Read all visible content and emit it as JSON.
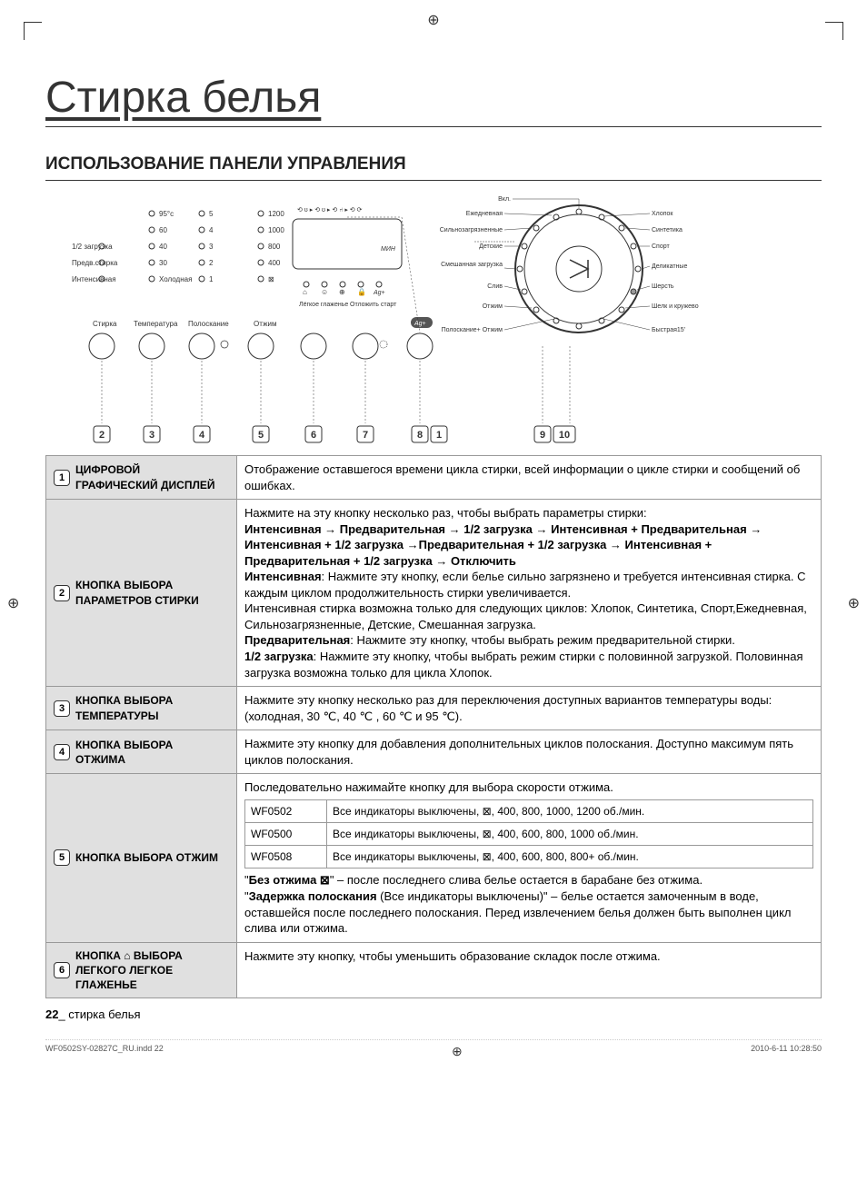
{
  "crop_glyph": "⊕",
  "page_title": "Стирка белья",
  "section_title": "ИСПОЛЬЗОВАНИЕ ПАНЕЛИ УПРАВЛЕНИЯ",
  "panel": {
    "left_panel": {
      "wash_label": "Стирка",
      "temp_label": "Температура",
      "rinse_label": "Полоскание",
      "temp_95": "95°c",
      "temp_60": "60",
      "temp_40": "40",
      "temp_30": "30",
      "temp_cold": "Холодная",
      "half_load": "1/2 загрузка",
      "prewash": "Предв.стирка",
      "intensive": "Интенсивная",
      "rinse_5": "5",
      "rinse_4": "4",
      "rinse_3": "3",
      "rinse_2": "2",
      "rinse_1": "1"
    },
    "spin_panel": {
      "label": "Отжим",
      "s1200": "1200",
      "s1000": "1000",
      "s800": "800",
      "s400": "400"
    },
    "easy_iron": "Лёгкое глаженье",
    "delay_start": "Отложить старт",
    "ag": "Ag+",
    "mnh": "МИН",
    "dial": {
      "on": "Вкл.",
      "daily": "Ежедневная",
      "heavy": "Сильнозагрязненные",
      "kids": "Детские",
      "mixed": "Смешанная загрузка",
      "drain": "Слив",
      "spin": "Отжим",
      "rinse_spin": "Полоскание+ Отжим",
      "cotton": "Хлопок",
      "synthetic": "Синтетика",
      "sport": "Спорт",
      "delicate": "Деликатные",
      "wool": "Шерсть",
      "silk": "Шелк и кружево",
      "quick": "Быстрая15'"
    },
    "callout_numbers": [
      "2",
      "3",
      "4",
      "5",
      "6",
      "7",
      "8",
      "1",
      "9",
      "10"
    ]
  },
  "rows": [
    {
      "num": "1",
      "label": "ЦИФРОВОЙ ГРАФИЧЕСКИЙ ДИСПЛЕЙ",
      "desc_html": "Отображение оставшегося времени цикла стирки, всей информации о цикле стирки и сообщений об ошибках."
    },
    {
      "num": "2",
      "label": "КНОПКА ВЫБОРА ПАРАМЕТРОВ СТИРКИ",
      "desc_html": "Нажмите на эту кнопку несколько раз, чтобы выбрать параметры стирки:<br><b>Интенсивная → Предварительная → 1/2 загрузка → Интенсивная + Предварительная → Интенсивная + 1/2 загрузка →Предварительная + 1/2 загрузка → Интенсивная + Предварительная + 1/2 загрузка → Отключить</b><br><b>Интенсивная</b>: Нажмите эту кнопку, если белье сильно загрязнено и требуется интенсивная стирка. С каждым циклом продолжительность стирки увеличивается.<br>Интенсивная стирка возможна только для следующих циклов: Хлопок, Синтетика, Спорт,Ежедневная, Сильнозагрязненные, Детские, Смешанная загрузка.<br><b>Предварительная</b>: Нажмите эту кнопку, чтобы выбрать режим предварительной стирки.<br><b>1/2 загрузка</b>: Нажмите эту кнопку, чтобы выбрать режим стирки с половинной загрузкой. Половинная загрузка возможна только для цикла Хлопок."
    },
    {
      "num": "3",
      "label": "КНОПКА ВЫБОРА ТЕМПЕРАТУРЫ",
      "desc_html": "Нажмите эту кнопку несколько раз для переключения доступных вариантов температуры воды: (холодная, 30 ℃, 40 ℃ , 60 ℃ и 95 ℃)."
    },
    {
      "num": "4",
      "label": "КНОПКА ВЫБОРА ОТЖИМА",
      "desc_html": "Нажмите эту кнопку для добавления дополнительных циклов полоскания. Доступно максимум пять циклов полоскания."
    },
    {
      "num": "5",
      "label": "КНОПКА ВЫБОРА ОТЖИМ",
      "desc_pre": "Последовательно нажимайте кнопку для выбора скорости отжима.",
      "models": [
        {
          "model": "WF0502",
          "text": "Все индикаторы выключены, ⊠, 400, 800, 1000, 1200 об./мин."
        },
        {
          "model": "WF0500",
          "text": "Все индикаторы выключены, ⊠, 400, 600, 800, 1000 об./мин."
        },
        {
          "model": "WF0508",
          "text": "Все индикаторы выключены, ⊠, 400, 600, 800, 800+ об./мин."
        }
      ],
      "desc_post": "\"<b>Без отжима ⊠</b>\" – после последнего слива белье остается в барабане без отжима.<br>\"<b>Задержка полоскания</b> (Все индикаторы выключены)\" – белье остается замоченным в воде, оставшейся после последнего полоскания. Перед извлечением белья должен быть выполнен цикл слива или отжима."
    },
    {
      "num": "6",
      "label": "КНОПКА ⌂ ВЫБОРА ЛЕГКОГО ЛЕГКОЕ ГЛАЖЕНЬЕ",
      "desc_html": "Нажмите эту кнопку, чтобы уменьшить образование  складок после отжима."
    }
  ],
  "footer": {
    "page": "22",
    "section": "_ стирка белья"
  },
  "meta": {
    "file": "WF0502SY-02827C_RU.indd   22",
    "timestamp": "2010-6-11   10:28:50"
  }
}
